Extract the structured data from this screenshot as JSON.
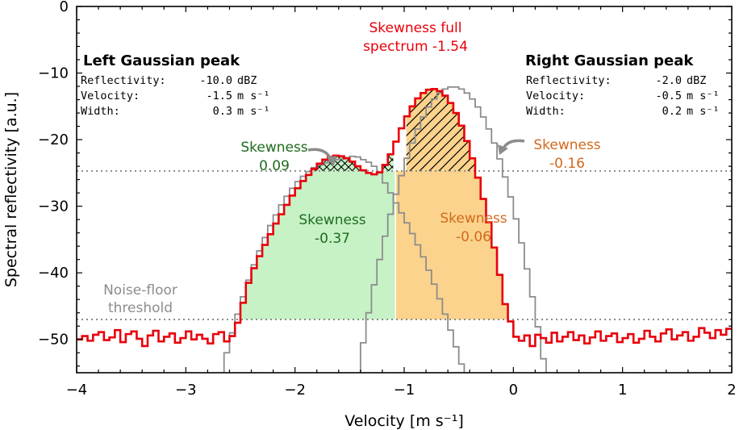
{
  "chart_data": {
    "type": "line",
    "xlabel": "Velocity [m s⁻¹]",
    "ylabel": "Spectral reflectivity [a.u.]",
    "xlim": [
      -4,
      2
    ],
    "ylim": [
      -55,
      0
    ],
    "xticks": [
      -4,
      -3,
      -2,
      -1,
      0,
      1,
      2
    ],
    "xtick_labels": [
      "−4",
      "−3",
      "−2",
      "−1",
      "0",
      "1",
      "2"
    ],
    "yticks": [
      0,
      -10,
      -20,
      -30,
      -40,
      -50
    ],
    "ytick_labels": [
      "0",
      "−10",
      "−20",
      "−30",
      "−40",
      "−50"
    ],
    "grid": false,
    "noise_floor_level": -47,
    "peak_threshold_level": -24.7,
    "split_velocity": -1.08,
    "colors": {
      "spectrum": "#e8000b",
      "gaussian": "#8c8c8c",
      "left_fill": "#c6f2c6",
      "right_fill": "#fbd38c",
      "threshold": "#8c8c8c",
      "green_text": "#1e6b1e",
      "orange_text": "#d2691e"
    },
    "series": [
      {
        "x": [
          -4.0,
          -3.95,
          -3.9,
          -3.85,
          -3.8,
          -3.75,
          -3.7,
          -3.65,
          -3.6,
          -3.55,
          -3.5,
          -3.45,
          -3.4,
          -3.35,
          -3.3,
          -3.25,
          -3.2,
          -3.15,
          -3.1,
          -3.05,
          -3.0,
          -2.95,
          -2.9,
          -2.85,
          -2.8,
          -2.75,
          -2.7,
          -2.65,
          -2.6,
          -2.55,
          -2.5,
          -2.45,
          -2.4,
          -2.35,
          -2.3,
          -2.25,
          -2.2,
          -2.15,
          -2.1,
          -2.05,
          -2.0,
          -1.95,
          -1.9,
          -1.85,
          -1.8,
          -1.75,
          -1.7,
          -1.65,
          -1.6,
          -1.55,
          -1.5,
          -1.45,
          -1.4,
          -1.35,
          -1.3,
          -1.25,
          -1.2,
          -1.15,
          -1.1,
          -1.05,
          -1.0,
          -0.95,
          -0.9,
          -0.85,
          -0.8,
          -0.75,
          -0.7,
          -0.65,
          -0.6,
          -0.55,
          -0.5,
          -0.45,
          -0.4,
          -0.35,
          -0.3,
          -0.25,
          -0.2,
          -0.15,
          -0.1,
          -0.05,
          0.0,
          0.05,
          0.1,
          0.15,
          0.2,
          0.25,
          0.3,
          0.35,
          0.4,
          0.45,
          0.5,
          0.55,
          0.6,
          0.65,
          0.7,
          0.75,
          0.8,
          0.85,
          0.9,
          0.95,
          1.0,
          1.05,
          1.1,
          1.15,
          1.2,
          1.25,
          1.3,
          1.35,
          1.4,
          1.45,
          1.5,
          1.55,
          1.6,
          1.65,
          1.7,
          1.75,
          1.8,
          1.85,
          1.9,
          1.95
        ],
        "y": [
          -50.0,
          -49.5,
          -50.2,
          -49.3,
          -48.9,
          -50.1,
          -49.7,
          -48.6,
          -50.4,
          -49.2,
          -48.8,
          -49.9,
          -51.0,
          -49.4,
          -48.7,
          -50.3,
          -49.6,
          -49.1,
          -50.5,
          -49.8,
          -48.8,
          -50.0,
          -49.3,
          -49.9,
          -50.6,
          -49.2,
          -48.9,
          -50.3,
          -49.5,
          -47.5,
          -44.5,
          -41.5,
          -39.3,
          -37.5,
          -35.8,
          -34.2,
          -32.6,
          -31.2,
          -29.8,
          -28.4,
          -27.3,
          -26.2,
          -25.3,
          -24.4,
          -23.6,
          -23.0,
          -22.6,
          -22.4,
          -22.5,
          -22.8,
          -23.3,
          -24.0,
          -24.6,
          -25.0,
          -25.2,
          -24.9,
          -23.8,
          -22.2,
          -20.3,
          -18.3,
          -16.5,
          -15.0,
          -13.8,
          -13.0,
          -12.5,
          -12.4,
          -12.7,
          -13.4,
          -14.5,
          -16.0,
          -17.9,
          -20.2,
          -22.8,
          -25.7,
          -28.9,
          -32.4,
          -36.2,
          -40.3,
          -44.7,
          -47.3,
          -49.6,
          -50.2,
          -49.4,
          -51.0,
          -49.3,
          -49.8,
          -50.5,
          -49.0,
          -50.3,
          -49.6,
          -48.9,
          -50.1,
          -49.4,
          -50.6,
          -49.7,
          -48.8,
          -50.2,
          -49.5,
          -49.1,
          -50.4,
          -49.8,
          -49.2,
          -50.5,
          -49.9,
          -48.7,
          -49.6,
          -50.3,
          -49.1,
          -48.5,
          -50.0,
          -49.4,
          -48.9,
          -50.2,
          -49.6,
          -48.3,
          -49.0,
          -49.8,
          -48.6,
          -49.3,
          -48.4
        ]
      },
      {
        "x": [
          -2.7,
          -2.65,
          -2.6,
          -2.55,
          -2.5,
          -2.45,
          -2.4,
          -2.35,
          -2.3,
          -2.25,
          -2.2,
          -2.15,
          -2.1,
          -2.05,
          -2.0,
          -1.95,
          -1.9,
          -1.85,
          -1.8,
          -1.75,
          -1.7,
          -1.65,
          -1.6,
          -1.55,
          -1.5,
          -1.45,
          -1.4,
          -1.35,
          -1.3,
          -1.25,
          -1.2,
          -1.15,
          -1.1,
          -1.05,
          -1.0,
          -0.95,
          -0.9,
          -0.85,
          -0.8,
          -0.75,
          -0.7,
          -0.65,
          -0.6,
          -0.55,
          -0.5,
          -0.45,
          -0.4,
          -0.35,
          -0.3
        ],
        "y": [
          -55.1,
          -52.0,
          -49.0,
          -46.2,
          -43.6,
          -41.1,
          -38.8,
          -36.7,
          -34.7,
          -32.9,
          -31.3,
          -29.8,
          -28.5,
          -27.3,
          -26.3,
          -25.5,
          -24.8,
          -24.2,
          -23.8,
          -23.5,
          -23.3,
          -23.0,
          -22.9,
          -22.7,
          -22.5,
          -22.6,
          -23.0,
          -23.4,
          -24.0,
          -25.0,
          -26.5,
          -28.0,
          -29.5,
          -31.0,
          -32.5,
          -34.1,
          -35.8,
          -37.6,
          -39.6,
          -41.7,
          -43.9,
          -46.2,
          -48.6,
          -51.1,
          -53.7,
          -55.5,
          -56.0,
          -56.0,
          -56.0
        ]
      },
      {
        "x": [
          -1.45,
          -1.4,
          -1.35,
          -1.3,
          -1.25,
          -1.2,
          -1.15,
          -1.1,
          -1.05,
          -1.0,
          -0.95,
          -0.9,
          -0.85,
          -0.8,
          -0.75,
          -0.7,
          -0.65,
          -0.6,
          -0.55,
          -0.5,
          -0.45,
          -0.4,
          -0.35,
          -0.3,
          -0.25,
          -0.2,
          -0.15,
          -0.1,
          -0.05,
          0.0,
          0.05,
          0.1,
          0.15,
          0.2,
          0.25,
          0.3,
          0.35,
          0.4
        ],
        "y": [
          -55.5,
          -50.5,
          -46.0,
          -41.8,
          -38.0,
          -34.5,
          -31.2,
          -28.2,
          -25.4,
          -22.8,
          -20.5,
          -18.4,
          -16.6,
          -15.1,
          -13.9,
          -13.0,
          -12.4,
          -12.1,
          -12.1,
          -12.4,
          -13.0,
          -13.9,
          -15.1,
          -16.6,
          -18.4,
          -20.5,
          -22.9,
          -25.6,
          -28.6,
          -31.9,
          -35.5,
          -39.4,
          -43.6,
          -48.1,
          -52.9,
          -55.5,
          -56.0,
          -56.0
        ]
      }
    ],
    "annotations": {
      "full_skew": [
        "Skewness full",
        "spectrum -1.54"
      ],
      "left_title": "Left Gaussian peak",
      "left_rows": [
        {
          "label": "Reflectivity:",
          "value": "-10.0",
          "unit": "dBZ"
        },
        {
          "label": "Velocity:",
          "value": "-1.5",
          "unit": "m s⁻¹"
        },
        {
          "label": "Width:",
          "value": "0.3",
          "unit": "m s⁻¹"
        }
      ],
      "right_title": "Right Gaussian peak",
      "right_rows": [
        {
          "label": "Reflectivity:",
          "value": "-2.0",
          "unit": "dBZ"
        },
        {
          "label": "Velocity:",
          "value": "-0.5",
          "unit": "m s⁻¹"
        },
        {
          "label": "Width:",
          "value": "0.2",
          "unit": "m s⁻¹"
        }
      ],
      "skew_left_top": [
        "Skewness",
        "0.09"
      ],
      "skew_right_top": [
        "Skewness",
        "-0.16"
      ],
      "skew_left_body": [
        "Skewness",
        "-0.37"
      ],
      "skew_right_body": [
        "Skewness",
        "-0.06"
      ],
      "noise_floor": [
        "Noise-floor",
        "threshold"
      ]
    }
  }
}
